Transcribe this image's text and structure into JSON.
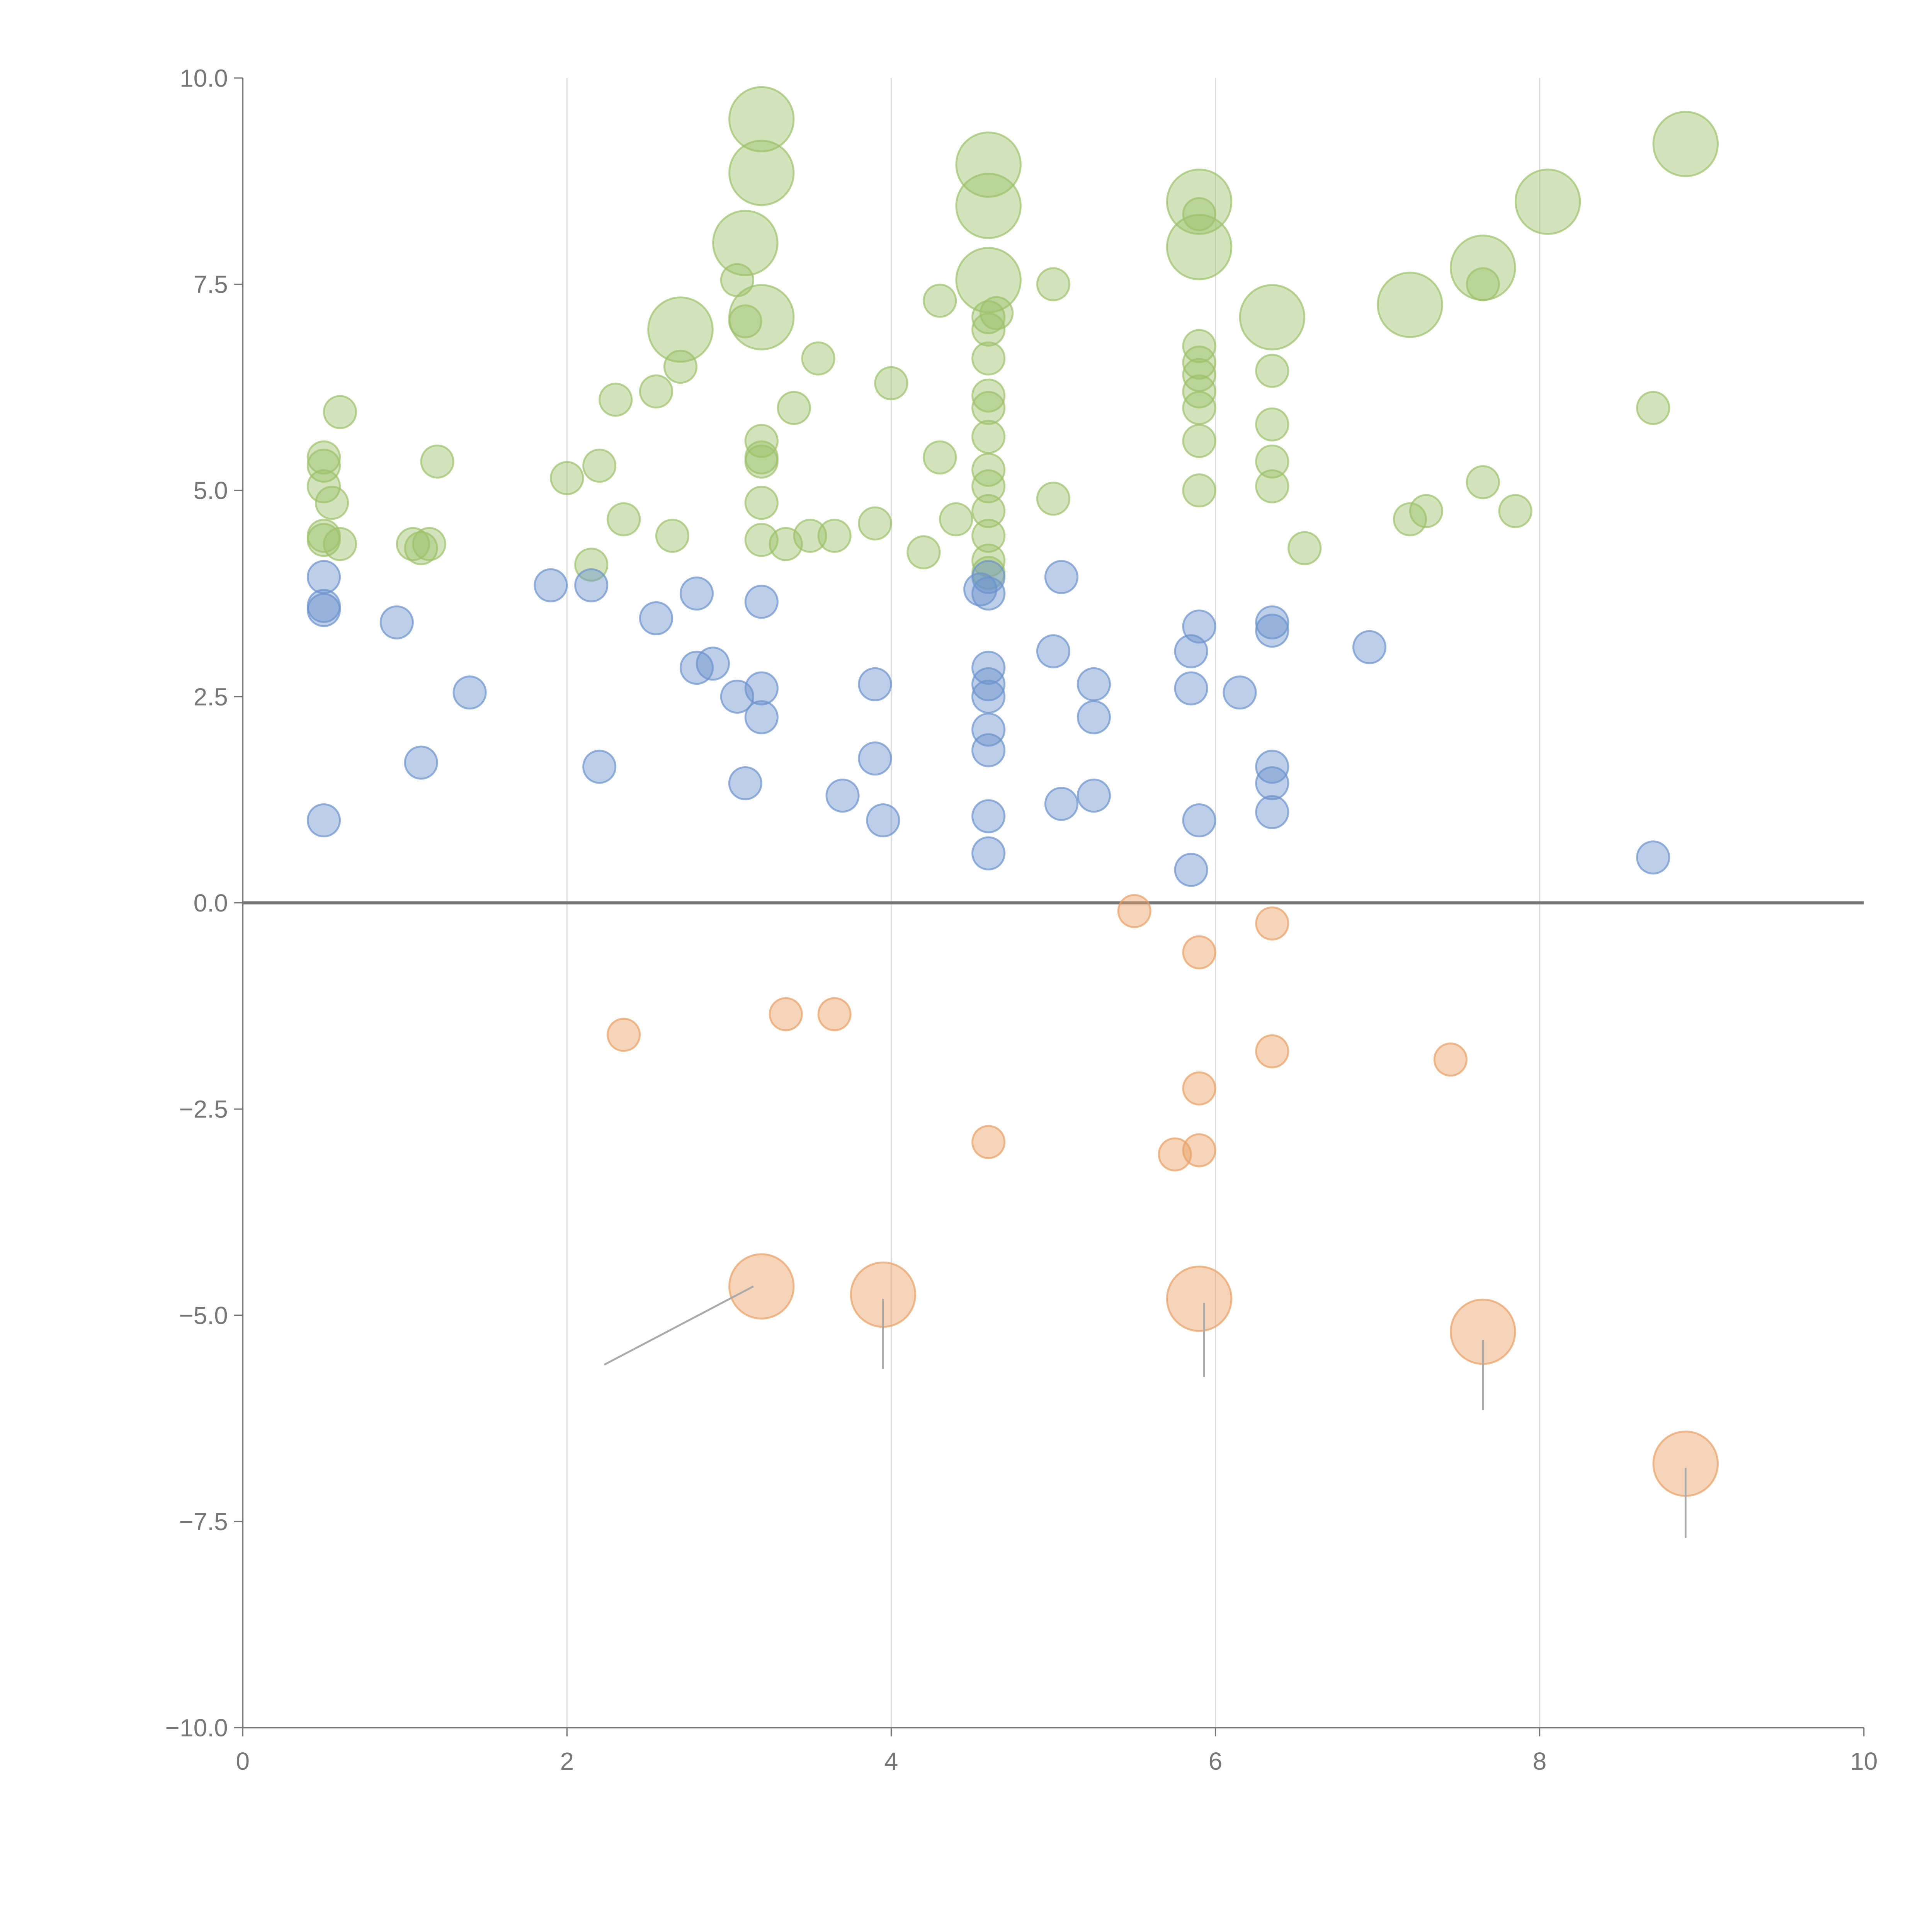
{
  "chart_data": {
    "type": "scatter",
    "title": "",
    "xlabel": "",
    "ylabel": "",
    "xlim": [
      0,
      10
    ],
    "ylim": [
      -10,
      10
    ],
    "grid": "vertical",
    "x_ticks": [
      "0",
      "2",
      "4",
      "6",
      "8",
      "10"
    ],
    "x_tick_values": [
      0,
      2,
      4,
      6,
      8,
      10
    ],
    "y_ticks": [
      "10.0",
      "7.5",
      "5.0",
      "2.5",
      "0.0",
      "−2.5",
      "−5.0",
      "−7.5",
      "−10.0"
    ],
    "y_tick_values": [
      10,
      7.5,
      5,
      2.5,
      0,
      -2.5,
      -5,
      -7.5,
      -10
    ],
    "colors": {
      "green": "#9dc16a",
      "blue": "#6b93cc",
      "orange": "#e8a064"
    },
    "series": [
      {
        "name": "green",
        "points": [
          [
            3.2,
            9.5,
            4
          ],
          [
            3.2,
            8.85,
            4
          ],
          [
            3.1,
            8.0,
            4
          ],
          [
            3.2,
            7.1,
            4
          ],
          [
            2.7,
            6.95,
            4
          ],
          [
            4.6,
            8.95,
            4
          ],
          [
            4.6,
            8.45,
            4
          ],
          [
            4.6,
            7.55,
            4
          ],
          [
            5.9,
            8.5,
            4
          ],
          [
            5.9,
            7.95,
            4
          ],
          [
            6.35,
            7.1,
            4
          ],
          [
            7.2,
            7.25,
            4
          ],
          [
            7.65,
            7.7,
            4
          ],
          [
            8.05,
            8.5,
            4
          ],
          [
            8.9,
            9.2,
            4
          ],
          [
            0.5,
            5.4,
            1
          ],
          [
            0.5,
            5.3,
            1
          ],
          [
            0.5,
            5.05,
            1
          ],
          [
            0.55,
            4.85,
            1
          ],
          [
            0.5,
            4.45,
            1
          ],
          [
            0.5,
            4.4,
            1
          ],
          [
            0.6,
            4.35,
            1
          ],
          [
            0.6,
            5.95,
            1
          ],
          [
            1.05,
            4.35,
            1
          ],
          [
            1.1,
            4.3,
            1
          ],
          [
            1.15,
            4.35,
            1
          ],
          [
            1.2,
            5.35,
            1
          ],
          [
            2.0,
            5.15,
            1
          ],
          [
            2.15,
            4.1,
            1
          ],
          [
            2.2,
            5.3,
            1
          ],
          [
            2.3,
            6.1,
            1
          ],
          [
            2.35,
            4.65,
            1
          ],
          [
            2.55,
            6.2,
            1
          ],
          [
            2.65,
            4.45,
            1
          ],
          [
            2.7,
            6.5,
            1
          ],
          [
            3.05,
            7.55,
            1
          ],
          [
            3.1,
            7.05,
            1
          ],
          [
            3.2,
            5.6,
            1
          ],
          [
            3.2,
            5.4,
            1
          ],
          [
            3.2,
            5.35,
            1
          ],
          [
            3.2,
            4.85,
            1
          ],
          [
            3.2,
            4.4,
            1
          ],
          [
            3.35,
            4.35,
            1
          ],
          [
            3.4,
            6.0,
            1
          ],
          [
            3.5,
            4.45,
            1
          ],
          [
            3.55,
            6.6,
            1
          ],
          [
            3.65,
            4.45,
            1
          ],
          [
            3.9,
            4.6,
            1
          ],
          [
            4.0,
            6.3,
            1
          ],
          [
            4.2,
            4.25,
            1
          ],
          [
            4.3,
            7.3,
            1
          ],
          [
            4.3,
            5.4,
            1
          ],
          [
            4.4,
            4.65,
            1
          ],
          [
            4.6,
            7.1,
            1
          ],
          [
            4.6,
            6.95,
            1
          ],
          [
            4.6,
            6.6,
            1
          ],
          [
            4.6,
            6.15,
            1
          ],
          [
            4.6,
            6.0,
            1
          ],
          [
            4.6,
            5.65,
            1
          ],
          [
            4.6,
            5.25,
            1
          ],
          [
            4.6,
            5.05,
            1
          ],
          [
            4.6,
            4.75,
            1
          ],
          [
            4.6,
            4.45,
            1
          ],
          [
            4.6,
            4.15,
            1
          ],
          [
            4.6,
            4.0,
            1
          ],
          [
            4.65,
            7.15,
            1
          ],
          [
            5.0,
            7.5,
            1
          ],
          [
            5.0,
            4.9,
            1
          ],
          [
            5.9,
            8.35,
            1
          ],
          [
            5.9,
            6.75,
            1
          ],
          [
            5.9,
            6.55,
            1
          ],
          [
            5.9,
            6.4,
            1
          ],
          [
            5.9,
            6.2,
            1
          ],
          [
            5.9,
            6.0,
            1
          ],
          [
            5.9,
            5.6,
            1
          ],
          [
            5.9,
            5.0,
            1
          ],
          [
            6.35,
            6.45,
            1
          ],
          [
            6.35,
            5.8,
            1
          ],
          [
            6.35,
            5.35,
            1
          ],
          [
            6.35,
            5.05,
            1
          ],
          [
            6.55,
            4.3,
            1
          ],
          [
            7.2,
            4.65,
            1
          ],
          [
            7.3,
            4.75,
            1
          ],
          [
            7.65,
            5.1,
            1
          ],
          [
            7.65,
            7.5,
            1
          ],
          [
            7.85,
            4.75,
            1
          ],
          [
            8.7,
            6.0,
            1
          ]
        ]
      },
      {
        "name": "blue",
        "points": [
          [
            0.5,
            3.95,
            1
          ],
          [
            0.5,
            3.6,
            1
          ],
          [
            0.5,
            3.55,
            1
          ],
          [
            0.5,
            1.0,
            1
          ],
          [
            0.95,
            3.4,
            1
          ],
          [
            1.1,
            1.7,
            1
          ],
          [
            1.4,
            2.55,
            1
          ],
          [
            1.9,
            3.85,
            1
          ],
          [
            2.15,
            3.85,
            1
          ],
          [
            2.2,
            1.65,
            1
          ],
          [
            2.55,
            3.45,
            1
          ],
          [
            2.8,
            3.75,
            1
          ],
          [
            2.8,
            2.85,
            1
          ],
          [
            2.9,
            2.9,
            1
          ],
          [
            3.05,
            2.5,
            1
          ],
          [
            3.1,
            1.45,
            1
          ],
          [
            3.2,
            3.65,
            1
          ],
          [
            3.2,
            2.6,
            1
          ],
          [
            3.2,
            2.25,
            1
          ],
          [
            3.7,
            1.3,
            1
          ],
          [
            3.9,
            2.65,
            1
          ],
          [
            3.9,
            1.75,
            1
          ],
          [
            3.95,
            1.0,
            1
          ],
          [
            4.55,
            3.8,
            1
          ],
          [
            4.6,
            3.95,
            1
          ],
          [
            4.6,
            3.75,
            1
          ],
          [
            4.6,
            2.85,
            1
          ],
          [
            4.6,
            2.65,
            1
          ],
          [
            4.6,
            2.5,
            1
          ],
          [
            4.6,
            2.1,
            1
          ],
          [
            4.6,
            1.85,
            1
          ],
          [
            4.6,
            1.05,
            1
          ],
          [
            4.6,
            0.6,
            1
          ],
          [
            5.0,
            3.05,
            1
          ],
          [
            5.05,
            3.95,
            1
          ],
          [
            5.05,
            1.2,
            1
          ],
          [
            5.25,
            2.65,
            1
          ],
          [
            5.25,
            2.25,
            1
          ],
          [
            5.25,
            1.3,
            1
          ],
          [
            5.85,
            3.05,
            1
          ],
          [
            5.85,
            2.6,
            1
          ],
          [
            5.85,
            0.4,
            1
          ],
          [
            5.9,
            1.0,
            1
          ],
          [
            5.9,
            3.35,
            1
          ],
          [
            6.15,
            2.55,
            1
          ],
          [
            6.35,
            3.4,
            1
          ],
          [
            6.35,
            3.3,
            1
          ],
          [
            6.35,
            1.65,
            1
          ],
          [
            6.35,
            1.45,
            1
          ],
          [
            6.35,
            1.1,
            1
          ],
          [
            6.95,
            3.1,
            1
          ],
          [
            8.7,
            0.55,
            1
          ]
        ]
      },
      {
        "name": "orange",
        "points": [
          [
            5.5,
            -0.1,
            1
          ],
          [
            5.9,
            -0.6,
            1
          ],
          [
            6.35,
            -0.25,
            1
          ],
          [
            2.35,
            -1.6,
            1
          ],
          [
            3.35,
            -1.35,
            1
          ],
          [
            3.65,
            -1.35,
            1
          ],
          [
            6.35,
            -1.8,
            1
          ],
          [
            7.45,
            -1.9,
            1
          ],
          [
            5.9,
            -2.25,
            1
          ],
          [
            4.6,
            -2.9,
            1
          ],
          [
            5.75,
            -3.05,
            1
          ],
          [
            5.9,
            -3.0,
            1
          ],
          [
            3.2,
            -4.65,
            4
          ],
          [
            3.95,
            -4.75,
            4
          ],
          [
            5.9,
            -4.8,
            4
          ],
          [
            7.65,
            -5.2,
            4
          ],
          [
            8.9,
            -6.8,
            4
          ]
        ]
      }
    ],
    "leader_lines": [
      [
        [
          3.15,
          -4.65
        ],
        [
          2.23,
          -5.6
        ]
      ],
      [
        [
          3.95,
          -4.8
        ],
        [
          3.95,
          -5.65
        ]
      ],
      [
        [
          5.93,
          -4.85
        ],
        [
          5.93,
          -5.75
        ]
      ],
      [
        [
          7.65,
          -5.3
        ],
        [
          7.65,
          -6.15
        ]
      ],
      [
        [
          8.9,
          -6.85
        ],
        [
          8.9,
          -7.7
        ]
      ]
    ]
  }
}
